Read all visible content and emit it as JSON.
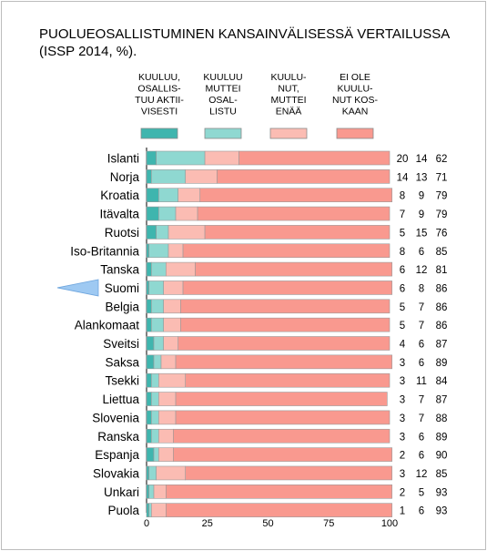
{
  "title": "PUOLUEOSALLISTUMINEN KANSAINVÄLISESSÄ VERTAILUSSA\n(ISSP 2014, %).",
  "chart_data": {
    "type": "bar",
    "stacked": true,
    "orientation": "horizontal",
    "xlim": [
      0,
      100
    ],
    "xticks": [
      "0",
      "25",
      "50",
      "75",
      "100"
    ],
    "grid": false,
    "legend_position": "top",
    "highlight_category": "Suomi",
    "categories": [
      "Islanti",
      "Norja",
      "Kroatia",
      "Itävalta",
      "Ruotsi",
      "Iso-Britannia",
      "Tanska",
      "Suomi",
      "Belgia",
      "Alankomaat",
      "Sveitsi",
      "Saksa",
      "Tsekki",
      "Liettua",
      "Slovenia",
      "Ranska",
      "Espanja",
      "Slovakia",
      "Unkari",
      "Puola"
    ],
    "series": [
      {
        "name": "KUULUU,\nOSALLIS-\nTUU AKTII-\nVISESTI",
        "color": "#3fb5ae",
        "values": [
          4,
          2,
          5,
          5,
          4,
          1,
          2,
          1,
          2,
          2,
          3,
          3,
          2,
          2,
          2,
          2,
          3,
          1,
          1,
          1
        ]
      },
      {
        "name": "KUULUU\nMUTTEI\nOSAL-\nLISTU",
        "color": "#8fd8d1",
        "values": [
          20,
          14,
          8,
          7,
          5,
          8,
          6,
          6,
          5,
          5,
          4,
          3,
          3,
          3,
          3,
          3,
          2,
          3,
          2,
          1
        ]
      },
      {
        "name": "KUULU-\nNUT,\nMUTTEI\nENÄÄ",
        "color": "#fbbcb3",
        "values": [
          14,
          13,
          9,
          9,
          15,
          6,
          12,
          8,
          7,
          7,
          6,
          6,
          11,
          7,
          7,
          6,
          6,
          12,
          5,
          6
        ]
      },
      {
        "name": "EI OLE\nKUULU-\nNUT KOS-\nKAAN",
        "color": "#f9998f",
        "values": [
          62,
          71,
          79,
          79,
          76,
          85,
          81,
          86,
          86,
          86,
          87,
          89,
          84,
          87,
          88,
          89,
          90,
          85,
          93,
          93
        ]
      }
    ]
  }
}
